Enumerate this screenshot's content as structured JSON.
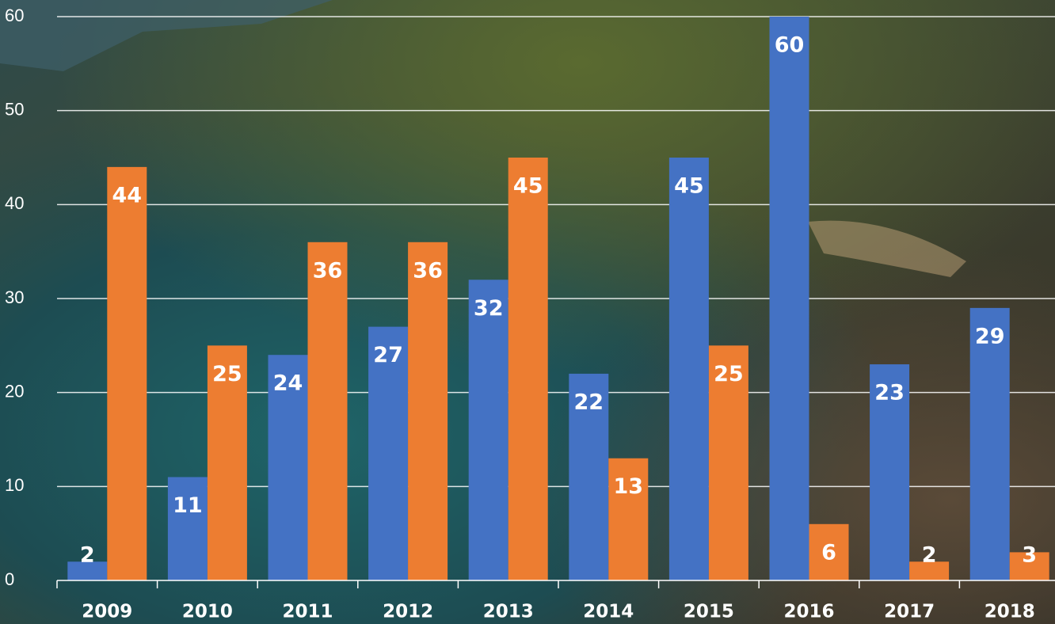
{
  "chart_data": {
    "type": "bar",
    "categories": [
      "2009",
      "2010",
      "2011",
      "2012",
      "2013",
      "2014",
      "2015",
      "2016",
      "2017",
      "2018"
    ],
    "series": [
      {
        "color": "#4472c4",
        "values": [
          2,
          11,
          24,
          27,
          32,
          22,
          45,
          60,
          23,
          29
        ]
      },
      {
        "color": "#ed7d31",
        "values": [
          44,
          25,
          36,
          36,
          45,
          13,
          25,
          6,
          2,
          3
        ]
      }
    ],
    "ylim": [
      0,
      60
    ],
    "yticks": [
      0,
      10,
      20,
      30,
      40,
      50,
      60
    ],
    "grid": true
  }
}
